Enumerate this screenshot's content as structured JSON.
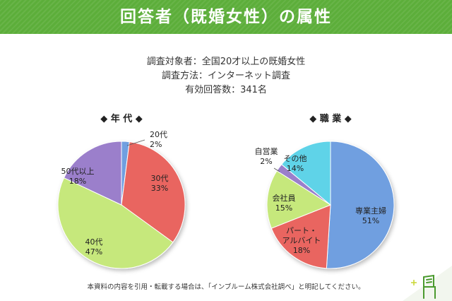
{
  "header": {
    "title": "回答者（既婚女性）の属性"
  },
  "survey_info": [
    "調査対象者：全国20才以上の既婚女性",
    "調査方法：インターネット調査",
    "有効回答数：341名"
  ],
  "footer": {
    "note": "本資料の内容を引用・転載する場合は、「インブルーム株式会社調べ」と明記してください。"
  },
  "colors": {
    "banner": "#5cae3a",
    "corner_accent": "#4a9a2e"
  },
  "icons": {
    "corner": "chair-icon"
  },
  "chart_data": [
    {
      "type": "pie",
      "title": "◆ 年 代 ◆",
      "slices": [
        {
          "label": "20代",
          "value": 2,
          "value_label": "2%",
          "color": "#6f9fe0"
        },
        {
          "label": "30代",
          "value": 33,
          "value_label": "33%",
          "color": "#e96561"
        },
        {
          "label": "40代",
          "value": 47,
          "value_label": "47%",
          "color": "#c6e87c"
        },
        {
          "label": "50代以上",
          "value": 18,
          "value_label": "18%",
          "color": "#9b7fcb"
        }
      ]
    },
    {
      "type": "pie",
      "title": "◆ 職 業 ◆",
      "slices": [
        {
          "label": "専業主婦",
          "value": 51,
          "value_label": "51%",
          "color": "#6f9fe0"
        },
        {
          "label": "パート・アルバイト",
          "value": 18,
          "value_label": "18%",
          "color": "#e96561"
        },
        {
          "label": "会社員",
          "value": 15,
          "value_label": "15%",
          "color": "#c6e87c"
        },
        {
          "label": "自営業",
          "value": 2,
          "value_label": "2%",
          "color": "#9b7fcb"
        },
        {
          "label": "その他",
          "value": 14,
          "value_label": "14%",
          "color": "#5fd3e8"
        }
      ]
    }
  ]
}
